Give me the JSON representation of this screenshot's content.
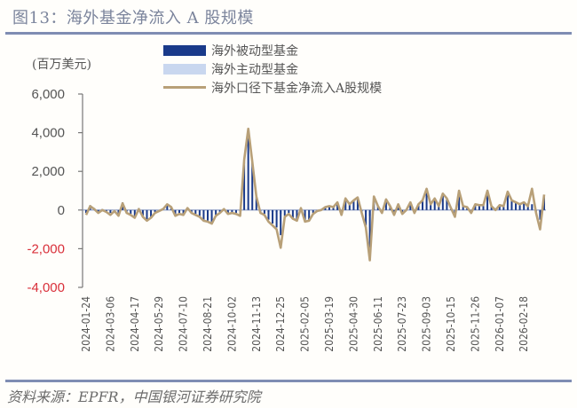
{
  "header": {
    "title": "图13：海外基金净流入 A 股规模"
  },
  "footer": {
    "source": "资料来源：EPFR，中国银河证券研究院"
  },
  "colors": {
    "passive": "#1a3a8a",
    "active": "#c9d7ef",
    "line": "#b8a078",
    "axis": "#777777",
    "negative_label": "#d9303a",
    "title": "#7b849c",
    "rule": "#7f8db3"
  },
  "chart_data": {
    "type": "bar",
    "title": "海外基金净流入 A 股规模",
    "ylabel": "(百万美元)",
    "xlabel": "",
    "ylim": [
      -4000,
      6000
    ],
    "yticks": [
      6000,
      4000,
      2000,
      0,
      -2000,
      -4000
    ],
    "ytick_labels": [
      "6,000",
      "4,000",
      "2,000",
      "0",
      "-2,000",
      "-4,000"
    ],
    "grid": false,
    "legend_position": "top-center",
    "legend": [
      "海外被动型基金",
      "海外主动型基金",
      "海外口径下基金净流入A股规模"
    ],
    "xtick_labels": [
      "2024-01-24",
      "2024-03-06",
      "2024-04-17",
      "2024-05-29",
      "2024-07-10",
      "2024-08-21",
      "2024-10-02",
      "2024-11-13",
      "2024-12-25",
      "2025-02-05",
      "2025-03-19",
      "2025-04-30",
      "2025-06-11",
      "2025-07-23",
      "2025-09-03",
      "2025-10-15",
      "2025-11-26",
      "2026-01-07",
      "2026-02-18"
    ],
    "x_weekly_count": 114,
    "series": [
      {
        "name": "海外被动型基金",
        "type": "bar",
        "values": [
          -150,
          250,
          100,
          -100,
          50,
          -50,
          -150,
          0,
          -200,
          400,
          -100,
          -200,
          -350,
          100,
          -300,
          -500,
          -350,
          -100,
          0,
          50,
          250,
          150,
          -250,
          -150,
          -200,
          100,
          -100,
          -200,
          -300,
          -500,
          -550,
          -650,
          -250,
          -100,
          50,
          -150,
          -100,
          -150,
          -250,
          2500,
          4100,
          2500,
          700,
          -100,
          -200,
          -500,
          -700,
          -900,
          -1300,
          -300,
          -150,
          -400,
          -500,
          100,
          -550,
          -500,
          -150,
          -50,
          0,
          150,
          200,
          150,
          400,
          -200,
          600,
          300,
          500,
          650,
          -100,
          -800,
          -2000,
          700,
          200,
          -100,
          550,
          200,
          -200,
          300,
          -150,
          0,
          400,
          -100,
          300,
          500,
          1100,
          300,
          600,
          200,
          800,
          600,
          100,
          -300,
          1000,
          200,
          150,
          -100,
          300,
          250,
          250,
          1000,
          200,
          0,
          250,
          200,
          900,
          500,
          400,
          300,
          400,
          200,
          300,
          -100,
          -500,
          750
        ],
        "notes": "weekly; approximate readings from bar heights"
      },
      {
        "name": "海外主动型基金",
        "type": "bar",
        "values": [
          -50,
          -50,
          -50,
          0,
          -50,
          -50,
          -50,
          -50,
          -100,
          0,
          -50,
          -50,
          -50,
          -50,
          -50,
          -50,
          -50,
          -50,
          -50,
          0,
          50,
          0,
          -50,
          -50,
          -50,
          0,
          -50,
          -50,
          -50,
          -50,
          -50,
          -50,
          -50,
          -50,
          0,
          -50,
          -50,
          -50,
          -50,
          100,
          100,
          0,
          0,
          -50,
          -50,
          -100,
          -100,
          -100,
          -200,
          -50,
          -50,
          -50,
          -50,
          0,
          -50,
          -50,
          -50,
          0,
          0,
          0,
          0,
          0,
          0,
          -50,
          0,
          0,
          0,
          0,
          -50,
          -100,
          -300,
          0,
          0,
          -50,
          0,
          0,
          -50,
          0,
          -50,
          0,
          0,
          -50,
          0,
          0,
          0,
          0,
          0,
          0,
          0,
          0,
          0,
          -50,
          0,
          0,
          0,
          -50,
          0,
          0,
          0,
          0,
          0,
          0,
          0,
          0,
          0,
          0,
          0,
          0,
          0,
          0,
          0,
          -50,
          -100,
          0
        ]
      },
      {
        "name": "海外口径下基金净流入A股规模",
        "type": "line",
        "values": [
          -250,
          200,
          50,
          -150,
          0,
          -100,
          -250,
          -50,
          -300,
          350,
          -150,
          -250,
          -400,
          50,
          -350,
          -550,
          -400,
          -150,
          -50,
          50,
          300,
          150,
          -300,
          -200,
          -250,
          100,
          -150,
          -250,
          -350,
          -550,
          -600,
          -700,
          -300,
          -150,
          50,
          -200,
          -150,
          -200,
          -300,
          2600,
          4200,
          2500,
          700,
          -150,
          -250,
          -600,
          -800,
          -1000,
          -1950,
          -350,
          -200,
          -450,
          -550,
          100,
          -600,
          -550,
          -200,
          -50,
          0,
          150,
          200,
          150,
          400,
          -250,
          600,
          300,
          500,
          650,
          -150,
          -900,
          -2600,
          700,
          200,
          -150,
          550,
          200,
          -250,
          300,
          -200,
          0,
          400,
          -150,
          300,
          500,
          1100,
          300,
          600,
          200,
          850,
          600,
          100,
          -350,
          1000,
          200,
          150,
          -150,
          300,
          250,
          250,
          1000,
          200,
          0,
          250,
          200,
          950,
          500,
          400,
          300,
          400,
          200,
          1100,
          -150,
          -1000,
          800
        ]
      }
    ]
  }
}
